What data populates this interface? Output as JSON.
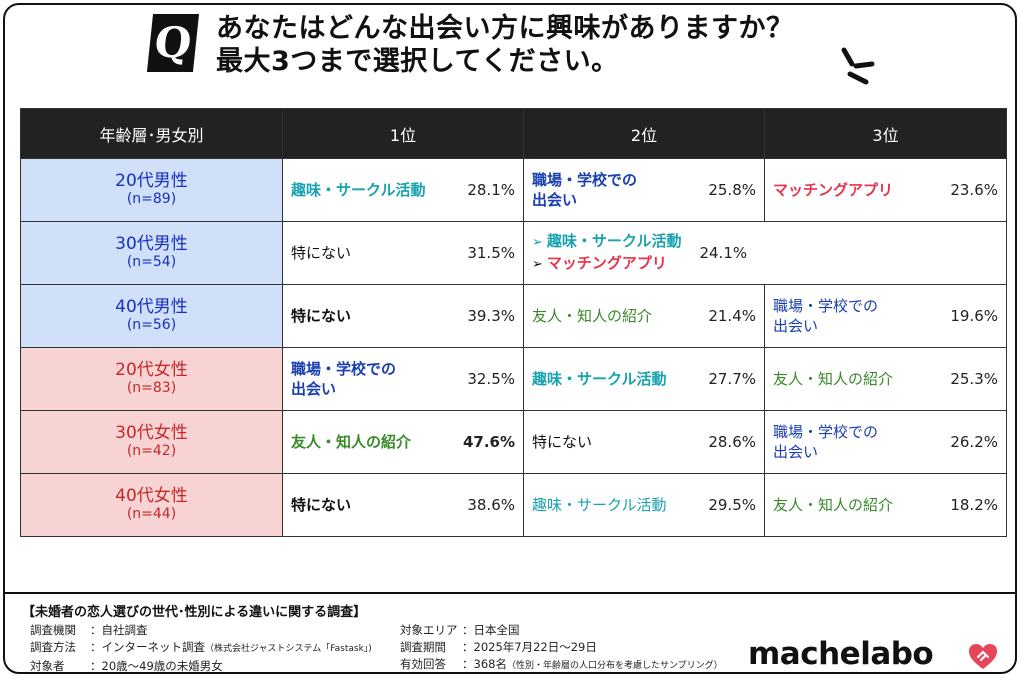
{
  "question": {
    "badge": "Q",
    "line1": "あなたはどんな出会い方に興味がありますか？",
    "line2": "最大3つまで選択してください。"
  },
  "table": {
    "headers": [
      "年齢層･男女別",
      "1位",
      "2位",
      "3位"
    ],
    "rows": [
      {
        "group": "20代男性",
        "n": "(n=89)",
        "r1": {
          "label": "趣味・サークル活動",
          "pct": "28.1%"
        },
        "r2": {
          "label1": "職場・学校での",
          "label2": "出会い",
          "pct": "25.8%"
        },
        "r3": {
          "label": "マッチングアプリ",
          "pct": "23.6%"
        }
      },
      {
        "group": "30代男性",
        "n": "(n=54)",
        "r1": {
          "label": "特にない",
          "pct": "31.5%"
        },
        "r2": {
          "arrow1": "➢",
          "label1": "趣味・サークル活動",
          "arrow2": "➢",
          "label2": "マッチングアプリ",
          "pct": "24.1%"
        }
      },
      {
        "group": "40代男性",
        "n": "(n=56)",
        "r1": {
          "label": "特にない",
          "pct": "39.3%"
        },
        "r2": {
          "label": "友人・知人の紹介",
          "pct": "21.4%"
        },
        "r3": {
          "label1": "職場・学校での",
          "label2": "出会い",
          "pct": "19.6%"
        }
      },
      {
        "group": "20代女性",
        "n": "(n=83)",
        "r1": {
          "label1": "職場・学校での",
          "label2": "出会い",
          "pct": "32.5%"
        },
        "r2": {
          "label": "趣味・サークル活動",
          "pct": "27.7%"
        },
        "r3": {
          "label": "友人・知人の紹介",
          "pct": "25.3%"
        }
      },
      {
        "group": "30代女性",
        "n": "(n=42)",
        "r1": {
          "label": "友人・知人の紹介",
          "pct": "47.6%"
        },
        "r2": {
          "label": "特にない",
          "pct": "28.6%"
        },
        "r3": {
          "label1": "職場・学校での",
          "label2": "出会い",
          "pct": "26.2%"
        }
      },
      {
        "group": "40代女性",
        "n": "(n=44)",
        "r1": {
          "label": "特にない",
          "pct": "38.6%"
        },
        "r2": {
          "label": "趣味・サークル活動",
          "pct": "29.5%"
        },
        "r3": {
          "label": "友人・知人の紹介",
          "pct": "18.2%"
        }
      }
    ]
  },
  "survey": {
    "title": "【未婚者の恋人選びの世代･性別による違いに関する調査】",
    "left": [
      {
        "key": "調査機関",
        "value": "：自社調査",
        "note": ""
      },
      {
        "key": "調査方法",
        "value": "：インターネット調査",
        "note": "（株式会社ジャストシステム「Fastask」)"
      },
      {
        "key": "対象者",
        "value": "：20歳～49歳の未婚男女",
        "note": ""
      }
    ],
    "right": [
      {
        "key": "対象エリア",
        "value": "：日本全国",
        "note": ""
      },
      {
        "key": "調査期間",
        "value": "：2025年7月22日～29日",
        "note": ""
      },
      {
        "key": "有効回答",
        "value": "：368名",
        "note": "（性別・年齢層の人口分布を考慮したサンプリング）"
      }
    ]
  },
  "brand": {
    "logo": "machelabo",
    "heart_color": "#e8445a"
  },
  "colors": {
    "male_bg": "#cfe0f8",
    "female_bg": "#f8d3d4",
    "header_bg": "#222222",
    "teal": "#18a3ae",
    "blue": "#1a3fb0",
    "red": "#e8334a",
    "green": "#3a8a2a"
  }
}
